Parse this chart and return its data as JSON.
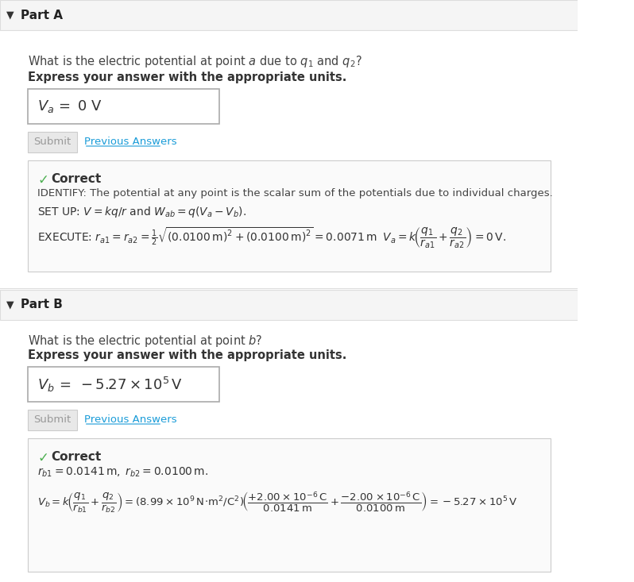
{
  "bg_color": "#ffffff",
  "header_bg": "#f5f5f5",
  "border_color": "#dddddd",
  "correct_box_bg": "#ffffff",
  "correct_box_border": "#cccccc",
  "check_color": "#4CAF50",
  "correct_text_color": "#333333",
  "submit_bg": "#e0e0e0",
  "submit_text": "#999999",
  "prev_answers_color": "#1a9cd8",
  "part_a_header": "Part A",
  "part_b_header": "Part B",
  "arrow_color": "#333333",
  "question_a": "What is the electric potential at point $a$ due to $q_1$ and $q_2$?",
  "question_b": "What is the electric potential at point $b$?",
  "bold_instruction": "Express your answer with the appropriate units.",
  "answer_a": "$V_a = $ 0 V",
  "answer_b": "$V_b = $ −5.27×10$^5$ V",
  "identify_text": "IDENTIFY: The potential at any point is the scalar sum of the potentials due to individual charges.",
  "setup_text": "SET UP: $V = kq/r$ and $W_{ab} = q(V_a - V_b)$.",
  "execute_a": "EXECUTE: $r_{a1} = r_{a2} = \\frac{1}{2}\\sqrt{(0.0100\\,\\mathrm{m})^2 + (0.0100\\,\\mathrm{m})^2} = 0.0071\\,\\mathrm{m}$ $\\;\\; V_a = k\\!\\left(\\dfrac{q_1}{r_{a1}} + \\dfrac{q_2}{r_{a2}}\\right) = 0\\,\\mathrm{V}.$",
  "rb_text": "$r_{b1} = 0.0141\\,\\mathrm{m},\\; r_{b2} = 0.0100\\,\\mathrm{m}.$",
  "execute_b": "$V_b = k\\!\\left(\\dfrac{q_1}{r_{b1}} + \\dfrac{q_2}{r_{b2}}\\right) = (8.99 \\times 10^9\\,\\mathrm{N}\\!\\cdot\\!\\mathrm{m}^2/\\mathrm{C}^2)\\!\\left(\\dfrac{+2.00\\times10^{-6}\\,\\mathrm{C}}{0.0141\\,\\mathrm{m}} + \\dfrac{-2.00\\times10^{-6}\\,\\mathrm{C}}{0.0100\\,\\mathrm{m}}\\right) = -5.27 \\times 10^5\\,\\mathrm{V}$"
}
